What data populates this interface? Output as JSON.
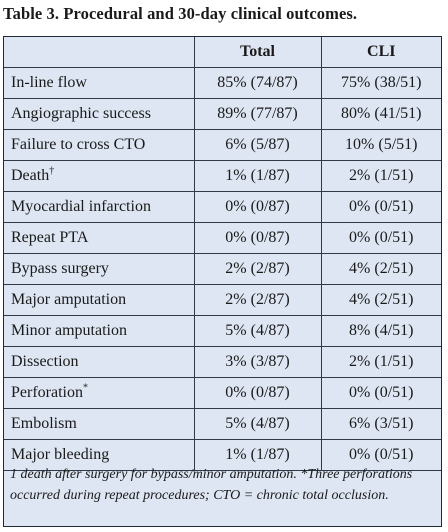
{
  "title": "Table 3. Procedural and 30-day clinical outcomes.",
  "columns": [
    "",
    "Total",
    "CLI"
  ],
  "rows": [
    {
      "label": "In-line flow",
      "sup": "",
      "total": "85% (74/87)",
      "cli": "75% (38/51)"
    },
    {
      "label": "Angiographic success",
      "sup": "",
      "total": "89% (77/87)",
      "cli": "80% (41/51)"
    },
    {
      "label": "Failure to cross CTO",
      "sup": "",
      "total": "6% (5/87)",
      "cli": "10% (5/51)"
    },
    {
      "label": "Death",
      "sup": "†",
      "total": "1% (1/87)",
      "cli": "2% (1/51)"
    },
    {
      "label": "Myocardial infarction",
      "sup": "",
      "total": "0% (0/87)",
      "cli": "0% (0/51)"
    },
    {
      "label": "Repeat PTA",
      "sup": "",
      "total": "0% (0/87)",
      "cli": "0% (0/51)"
    },
    {
      "label": "Bypass surgery",
      "sup": "",
      "total": "2% (2/87)",
      "cli": "4% (2/51)"
    },
    {
      "label": "Major amputation",
      "sup": "",
      "total": "2% (2/87)",
      "cli": "4% (2/51)"
    },
    {
      "label": "Minor amputation",
      "sup": "",
      "total": "5% (4/87)",
      "cli": "8% (4/51)"
    },
    {
      "label": "Dissection",
      "sup": "",
      "total": "3% (3/87)",
      "cli": "2% (1/51)"
    },
    {
      "label": "Perforation",
      "sup": "*",
      "total": "0% (0/87)",
      "cli": "0% (0/51)"
    },
    {
      "label": "Embolism",
      "sup": "",
      "total": "5% (4/87)",
      "cli": "6% (3/51)"
    },
    {
      "label": "Major bleeding",
      "sup": "",
      "total": "1% (1/87)",
      "cli": "0% (0/51)"
    }
  ],
  "footnote": "1 death after surgery for bypass/minor amputation. *Three perforations occurred during repeat procedures; CTO = chronic total occlusion."
}
